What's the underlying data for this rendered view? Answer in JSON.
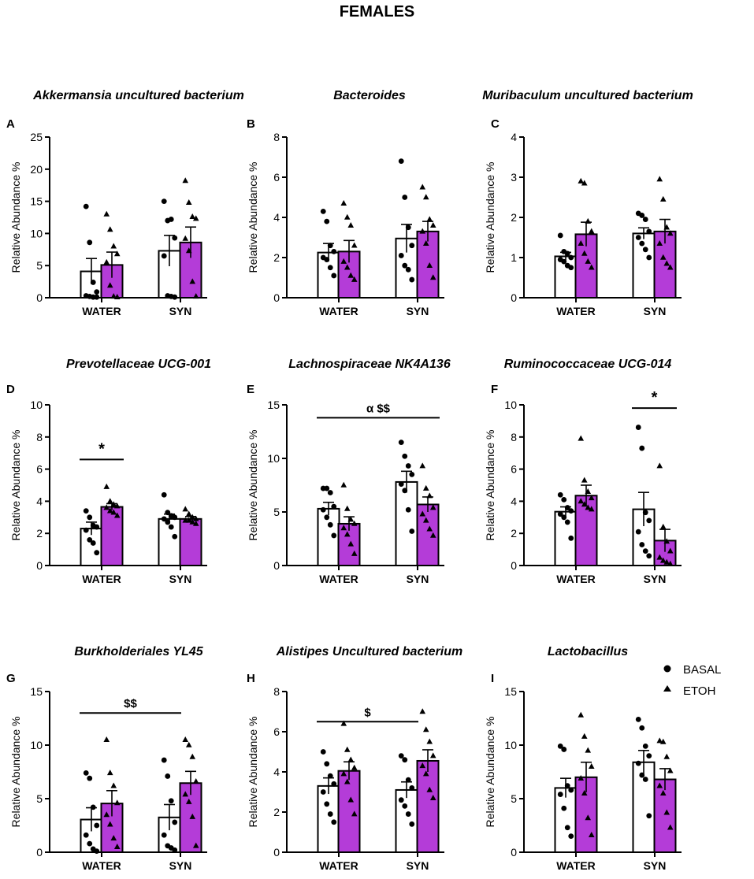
{
  "figure": {
    "title": "FEMALES",
    "legend": {
      "placement": "right",
      "items": [
        {
          "label": "BASAL",
          "marker": "circle"
        },
        {
          "label": "ETOH",
          "marker": "triangle"
        }
      ]
    },
    "colors": {
      "basal_fill": "#ffffff",
      "etoh_fill": "#b43cd8",
      "stroke": "#000000"
    }
  },
  "chart_data": [
    {
      "type": "bar",
      "panel": "A",
      "title": "Akkermansia uncultured bacterium",
      "ylabel": "Relative Abundance %",
      "ylim": [
        0,
        25
      ],
      "yticks": [
        0,
        5,
        10,
        15,
        20,
        25
      ],
      "categories": [
        "WATER",
        "SYN"
      ],
      "series": [
        {
          "name": "BASAL",
          "values": [
            4.1,
            7.3
          ],
          "sem": [
            2.0,
            2.4
          ],
          "points": [
            [
              14.2,
              8.6,
              2.4,
              0.9,
              0.3,
              0.2,
              0.1,
              0.1
            ],
            [
              15.0,
              12.0,
              12.2,
              9.3,
              6.5,
              0.3,
              0.2,
              0.1
            ]
          ]
        },
        {
          "name": "ETOH",
          "values": [
            5.1,
            8.6
          ],
          "sem": [
            2.0,
            2.4
          ],
          "points": [
            [
              13.0,
              10.6,
              8.0,
              6.8,
              5.5,
              1.9,
              0.2,
              0.1
            ],
            [
              18.2,
              14.8,
              12.6,
              12.3,
              9.2,
              7.3,
              2.5,
              0.2
            ]
          ]
        }
      ]
    },
    {
      "type": "bar",
      "panel": "B",
      "title": "Bacteroides",
      "ylabel": "Relative Abundance %",
      "ylim": [
        0,
        8
      ],
      "yticks": [
        0,
        2,
        4,
        6,
        8
      ],
      "categories": [
        "WATER",
        "SYN"
      ],
      "series": [
        {
          "name": "BASAL",
          "values": [
            2.25,
            2.95
          ],
          "sem": [
            0.45,
            0.7
          ],
          "points": [
            [
              4.3,
              3.8,
              2.6,
              2.3,
              2.0,
              1.9,
              1.5,
              1.1
            ],
            [
              6.8,
              5.0,
              3.5,
              2.6,
              2.1,
              1.6,
              1.4,
              0.9
            ]
          ]
        },
        {
          "name": "ETOH",
          "values": [
            2.3,
            3.3
          ],
          "sem": [
            0.55,
            0.5
          ],
          "points": [
            [
              4.7,
              4.0,
              3.6,
              2.6,
              1.8,
              1.5,
              1.1,
              0.9
            ],
            [
              5.5,
              5.0,
              3.9,
              3.6,
              3.3,
              2.7,
              1.6,
              1.0
            ]
          ]
        }
      ]
    },
    {
      "type": "bar",
      "panel": "C",
      "title": "Muribaculum uncultured bacterium",
      "ylabel": "Relative Abundance %",
      "ylim": [
        0,
        4
      ],
      "yticks": [
        0,
        1,
        2,
        3,
        4
      ],
      "categories": [
        "WATER",
        "SYN"
      ],
      "series": [
        {
          "name": "BASAL",
          "values": [
            1.03,
            1.6
          ],
          "sem": [
            0.1,
            0.14
          ],
          "points": [
            [
              1.55,
              1.15,
              1.1,
              1.0,
              0.95,
              0.9,
              0.8,
              0.75
            ],
            [
              2.1,
              2.05,
              1.95,
              1.65,
              1.5,
              1.35,
              1.2,
              1.0
            ]
          ]
        },
        {
          "name": "ETOH",
          "values": [
            1.58,
            1.65
          ],
          "sem": [
            0.3,
            0.3
          ],
          "points": [
            [
              2.9,
              2.85,
              1.9,
              1.65,
              1.35,
              1.1,
              0.9,
              0.75
            ],
            [
              2.95,
              2.45,
              1.75,
              1.6,
              1.35,
              1.0,
              0.85,
              0.75
            ]
          ]
        }
      ]
    },
    {
      "type": "bar",
      "panel": "D",
      "title": "Prevotellaceae UCG-001",
      "ylabel": "Relative Abundance %",
      "ylim": [
        0,
        10
      ],
      "yticks": [
        0,
        2,
        4,
        6,
        8,
        10
      ],
      "categories": [
        "WATER",
        "SYN"
      ],
      "annotation": {
        "text": "*",
        "from": "WATER BASAL",
        "to": "WATER ETOH",
        "y": 6.6
      },
      "series": [
        {
          "name": "BASAL",
          "values": [
            2.3,
            2.9
          ],
          "sem": [
            0.4,
            0.3
          ],
          "points": [
            [
              3.4,
              3.0,
              2.5,
              2.4,
              2.2,
              1.6,
              1.4,
              0.8
            ],
            [
              4.4,
              3.3,
              3.1,
              3.0,
              2.9,
              2.7,
              2.4,
              1.8
            ]
          ]
        },
        {
          "name": "ETOH",
          "values": [
            3.65,
            2.9
          ],
          "sem": [
            0.2,
            0.15
          ],
          "points": [
            [
              4.9,
              4.0,
              3.8,
              3.7,
              3.6,
              3.4,
              3.3,
              3.1
            ],
            [
              3.5,
              3.2,
              3.0,
              2.9,
              2.8,
              2.8,
              2.7,
              2.6
            ]
          ]
        }
      ]
    },
    {
      "type": "bar",
      "panel": "E",
      "title": "Lachnospiraceae NK4A136",
      "ylabel": "Relative Abundance %",
      "ylim": [
        0,
        15
      ],
      "yticks": [
        0,
        5,
        10,
        15
      ],
      "categories": [
        "WATER",
        "SYN"
      ],
      "annotation": {
        "text": "α $$",
        "from": "WATER BASAL",
        "to": "SYN ETOH",
        "y": 13.8
      },
      "series": [
        {
          "name": "BASAL",
          "values": [
            5.3,
            7.8
          ],
          "sem": [
            0.6,
            1.0
          ],
          "points": [
            [
              7.2,
              7.2,
              6.8,
              5.5,
              5.2,
              4.5,
              3.8,
              2.8
            ],
            [
              11.5,
              10.2,
              9.3,
              8.5,
              7.6,
              7.0,
              5.2,
              3.2
            ]
          ]
        },
        {
          "name": "ETOH",
          "values": [
            3.9,
            5.7
          ],
          "sem": [
            0.65,
            0.7
          ],
          "points": [
            [
              7.5,
              5.3,
              4.3,
              3.9,
              3.5,
              2.9,
              2.0,
              1.1
            ],
            [
              9.3,
              7.2,
              6.5,
              5.4,
              4.8,
              4.2,
              3.4,
              2.8
            ]
          ]
        }
      ]
    },
    {
      "type": "bar",
      "panel": "F",
      "title": "Ruminococcaceae UCG-014",
      "ylabel": "Relative Abundance %",
      "ylim": [
        0,
        10
      ],
      "yticks": [
        0,
        2,
        4,
        6,
        8,
        10
      ],
      "categories": [
        "WATER",
        "SYN"
      ],
      "annotation": {
        "text": "*",
        "from": "SYN BASAL",
        "to": "SYN ETOH",
        "y": 9.8
      },
      "series": [
        {
          "name": "BASAL",
          "values": [
            3.35,
            3.5
          ],
          "sem": [
            0.3,
            1.05
          ],
          "points": [
            [
              4.4,
              4.1,
              3.6,
              3.4,
              3.2,
              3.0,
              2.7,
              1.7
            ],
            [
              8.6,
              7.3,
              3.3,
              2.8,
              2.1,
              1.3,
              0.9,
              0.6
            ]
          ]
        },
        {
          "name": "ETOH",
          "values": [
            4.35,
            1.55
          ],
          "sem": [
            0.65,
            0.7
          ],
          "points": [
            [
              7.9,
              5.3,
              4.6,
              4.2,
              4.0,
              3.8,
              3.6,
              3.5
            ],
            [
              6.2,
              2.4,
              1.5,
              0.9,
              0.5,
              0.3,
              0.2,
              0.1
            ]
          ]
        }
      ]
    },
    {
      "type": "bar",
      "panel": "G",
      "title": "Burkholderiales YL45",
      "ylabel": "Relative Abundance %",
      "ylim": [
        0,
        15
      ],
      "yticks": [
        0,
        5,
        10,
        15
      ],
      "categories": [
        "WATER",
        "SYN"
      ],
      "annotation": {
        "text": "$$",
        "from": "WATER BASAL",
        "to": "SYN BASAL",
        "y": 13.0
      },
      "series": [
        {
          "name": "BASAL",
          "values": [
            3.05,
            3.25
          ],
          "sem": [
            1.1,
            1.2
          ],
          "points": [
            [
              7.4,
              6.9,
              4.2,
              2.5,
              1.6,
              0.8,
              0.3,
              0.1
            ],
            [
              8.6,
              7.1,
              4.8,
              2.8,
              1.6,
              0.6,
              0.4,
              0.2
            ]
          ]
        },
        {
          "name": "ETOH",
          "values": [
            4.55,
            6.45
          ],
          "sem": [
            1.2,
            1.1
          ],
          "points": [
            [
              10.5,
              7.4,
              6.2,
              4.6,
              3.5,
              2.6,
              1.3,
              0.5
            ],
            [
              10.5,
              10.0,
              8.9,
              6.6,
              5.4,
              4.7,
              3.3,
              0.6
            ]
          ]
        }
      ]
    },
    {
      "type": "bar",
      "panel": "H",
      "title": "Alistipes Uncultured bacterium",
      "ylabel": "Relative Abundance %",
      "ylim": [
        0,
        8
      ],
      "yticks": [
        0,
        2,
        4,
        6,
        8
      ],
      "categories": [
        "WATER",
        "SYN"
      ],
      "annotation": {
        "text": "$",
        "from": "WATER BASAL",
        "to": "SYN BASAL",
        "y": 6.5
      },
      "series": [
        {
          "name": "BASAL",
          "values": [
            3.3,
            3.1
          ],
          "sem": [
            0.4,
            0.4
          ],
          "points": [
            [
              5.0,
              4.4,
              3.8,
              3.4,
              3.0,
              2.4,
              1.9,
              1.5
            ],
            [
              4.8,
              4.6,
              3.6,
              3.2,
              2.6,
              2.3,
              1.9,
              1.4
            ]
          ]
        },
        {
          "name": "ETOH",
          "values": [
            4.05,
            4.55
          ],
          "sem": [
            0.45,
            0.55
          ],
          "points": [
            [
              6.4,
              5.1,
              4.6,
              4.2,
              3.9,
              3.5,
              2.6,
              1.9
            ],
            [
              7.0,
              6.1,
              5.5,
              4.8,
              4.3,
              3.9,
              3.1,
              2.7
            ]
          ]
        }
      ]
    },
    {
      "type": "bar",
      "panel": "I",
      "title": "Lactobacillus",
      "ylabel": "Relative Abundance %",
      "ylim": [
        0,
        15
      ],
      "yticks": [
        0,
        5,
        10,
        15
      ],
      "categories": [
        "WATER",
        "SYN"
      ],
      "series": [
        {
          "name": "BASAL",
          "values": [
            6.0,
            8.4
          ],
          "sem": [
            0.9,
            1.1
          ],
          "points": [
            [
              9.9,
              9.6,
              6.2,
              5.8,
              5.4,
              4.1,
              2.3,
              1.5
            ],
            [
              12.4,
              11.6,
              9.9,
              9.0,
              8.3,
              7.2,
              6.8,
              3.4
            ]
          ]
        },
        {
          "name": "ETOH",
          "values": [
            7.0,
            6.8
          ],
          "sem": [
            1.4,
            1.0
          ],
          "points": [
            [
              12.8,
              10.8,
              9.5,
              8.0,
              6.9,
              5.5,
              3.2,
              1.6
            ],
            [
              10.4,
              10.3,
              8.9,
              7.6,
              6.2,
              5.5,
              3.7,
              2.3
            ]
          ]
        }
      ]
    }
  ]
}
